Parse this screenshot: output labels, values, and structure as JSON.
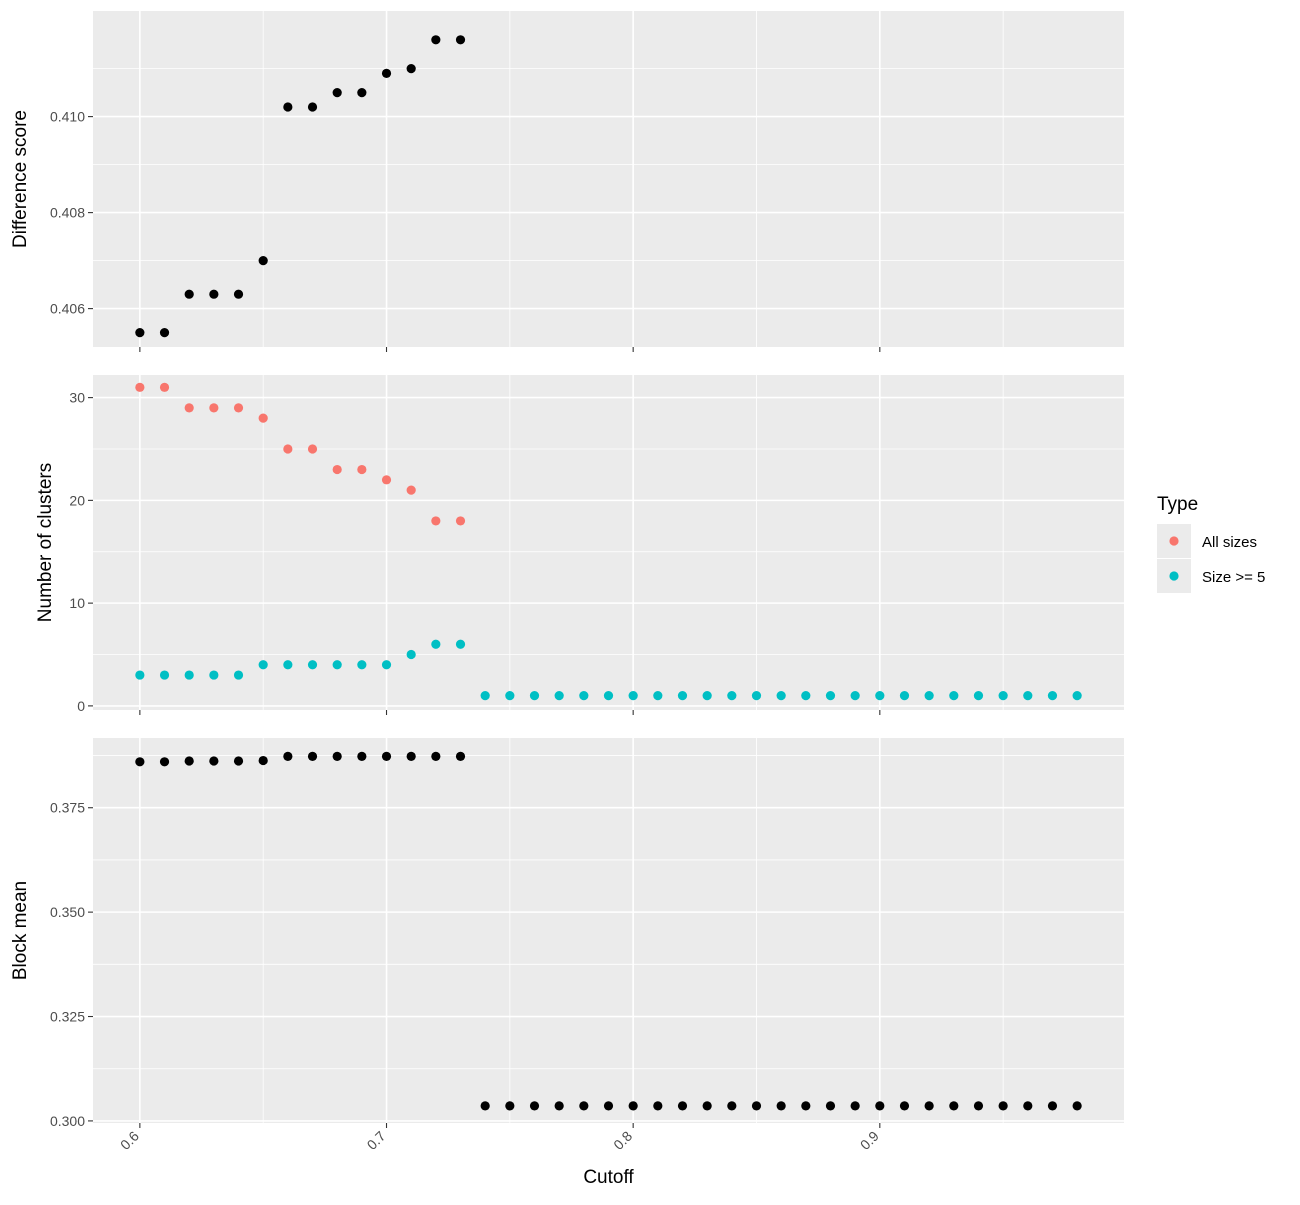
{
  "chart_data": {
    "type": "scatter",
    "layout": "faceted-vertical",
    "xlabel": "Cutoff",
    "x_ticks": [
      "0.6",
      "0.7",
      "0.8",
      "0.9"
    ],
    "xlim": [
      0.581,
      0.999
    ],
    "grid": true,
    "legend": {
      "title": "Type",
      "placement": "right",
      "entries": [
        {
          "label": "All sizes",
          "color": "#F8766D"
        },
        {
          "label": "Size >= 5",
          "color": "#00BFC4"
        }
      ]
    },
    "panels": [
      {
        "ylabel": "Difference score",
        "ylim": [
          0.4052,
          0.4122
        ],
        "y_ticks": [
          0.406,
          0.408,
          0.41
        ],
        "y_tick_labels": [
          "0.406",
          "0.408",
          "0.410"
        ],
        "series": [
          {
            "color": "#000000",
            "x": [
              0.6,
              0.61,
              0.62,
              0.63,
              0.64,
              0.65,
              0.66,
              0.67,
              0.68,
              0.69,
              0.7,
              0.71,
              0.72,
              0.73
            ],
            "y": [
              0.4055,
              0.4055,
              0.4063,
              0.4063,
              0.4063,
              0.407,
              0.4102,
              0.4102,
              0.4105,
              0.4105,
              0.4109,
              0.411,
              0.4116,
              0.4116
            ]
          }
        ]
      },
      {
        "ylabel": "Number of clusters",
        "ylim": [
          -0.4,
          32.2
        ],
        "y_ticks": [
          0,
          10,
          20,
          30
        ],
        "y_tick_labels": [
          "0",
          "10",
          "20",
          "30"
        ],
        "series": [
          {
            "name": "All sizes",
            "color": "#F8766D",
            "x": [
              0.6,
              0.61,
              0.62,
              0.63,
              0.64,
              0.65,
              0.66,
              0.67,
              0.68,
              0.69,
              0.7,
              0.71,
              0.72,
              0.73
            ],
            "y": [
              31,
              31,
              29,
              29,
              29,
              28,
              25,
              25,
              23,
              23,
              22,
              21,
              18,
              18
            ]
          },
          {
            "name": "Size >= 5",
            "color": "#00BFC4",
            "x": [
              0.6,
              0.61,
              0.62,
              0.63,
              0.64,
              0.65,
              0.66,
              0.67,
              0.68,
              0.69,
              0.7,
              0.71,
              0.72,
              0.73,
              0.74,
              0.75,
              0.76,
              0.77,
              0.78,
              0.79,
              0.8,
              0.81,
              0.82,
              0.83,
              0.84,
              0.85,
              0.86,
              0.87,
              0.88,
              0.89,
              0.9,
              0.91,
              0.92,
              0.93,
              0.94,
              0.95,
              0.96,
              0.97,
              0.98
            ],
            "y": [
              3,
              3,
              3,
              3,
              3,
              4,
              4,
              4,
              4,
              4,
              4,
              5,
              6,
              6,
              1,
              1,
              1,
              1,
              1,
              1,
              1,
              1,
              1,
              1,
              1,
              1,
              1,
              1,
              1,
              1,
              1,
              1,
              1,
              1,
              1,
              1,
              1,
              1,
              1
            ]
          }
        ]
      },
      {
        "ylabel": "Block mean",
        "ylim": [
          0.2995,
          0.3917
        ],
        "y_ticks": [
          0.3,
          0.325,
          0.35,
          0.375
        ],
        "y_tick_labels": [
          "0.300",
          "0.325",
          "0.350",
          "0.375"
        ],
        "series": [
          {
            "color": "#000000",
            "x": [
              0.6,
              0.61,
              0.62,
              0.63,
              0.64,
              0.65,
              0.66,
              0.67,
              0.68,
              0.69,
              0.7,
              0.71,
              0.72,
              0.73,
              0.74,
              0.75,
              0.76,
              0.77,
              0.78,
              0.79,
              0.8,
              0.81,
              0.82,
              0.83,
              0.84,
              0.85,
              0.86,
              0.87,
              0.88,
              0.89,
              0.9,
              0.91,
              0.92,
              0.93,
              0.94,
              0.95,
              0.96,
              0.97,
              0.98
            ],
            "y": [
              0.386,
              0.386,
              0.3862,
              0.3862,
              0.3862,
              0.3863,
              0.3873,
              0.3873,
              0.3873,
              0.3873,
              0.3873,
              0.3873,
              0.3873,
              0.3873,
              0.3036,
              0.3036,
              0.3036,
              0.3036,
              0.3036,
              0.3036,
              0.3036,
              0.3036,
              0.3036,
              0.3036,
              0.3036,
              0.3036,
              0.3036,
              0.3036,
              0.3036,
              0.3036,
              0.3036,
              0.3036,
              0.3036,
              0.3036,
              0.3036,
              0.3036,
              0.3036,
              0.3036,
              0.3036
            ]
          }
        ]
      }
    ]
  }
}
